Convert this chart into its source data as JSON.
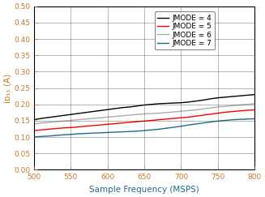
{
  "title": "",
  "xlabel": "Sample Frequency (MSPS)",
  "ylabel": "iᴅ₁₁ (A)",
  "xlim": [
    500,
    800
  ],
  "ylim": [
    0,
    0.5
  ],
  "xticks": [
    500,
    550,
    600,
    650,
    700,
    750,
    800
  ],
  "yticks": [
    0,
    0.05,
    0.1,
    0.15,
    0.2,
    0.25,
    0.3,
    0.35,
    0.4,
    0.45,
    0.5
  ],
  "x": [
    500,
    510,
    520,
    530,
    540,
    550,
    560,
    570,
    580,
    590,
    600,
    610,
    620,
    630,
    640,
    650,
    660,
    670,
    680,
    690,
    700,
    710,
    720,
    730,
    740,
    750,
    760,
    770,
    780,
    790,
    800
  ],
  "jmode4": [
    0.153,
    0.157,
    0.16,
    0.163,
    0.166,
    0.169,
    0.172,
    0.175,
    0.178,
    0.181,
    0.184,
    0.187,
    0.19,
    0.192,
    0.195,
    0.198,
    0.2,
    0.202,
    0.203,
    0.204,
    0.205,
    0.207,
    0.21,
    0.213,
    0.217,
    0.22,
    0.222,
    0.224,
    0.226,
    0.228,
    0.23
  ],
  "jmode5": [
    0.12,
    0.122,
    0.124,
    0.126,
    0.128,
    0.129,
    0.131,
    0.133,
    0.135,
    0.137,
    0.139,
    0.141,
    0.143,
    0.145,
    0.147,
    0.149,
    0.151,
    0.153,
    0.155,
    0.157,
    0.159,
    0.161,
    0.164,
    0.167,
    0.17,
    0.173,
    0.176,
    0.178,
    0.18,
    0.182,
    0.183
  ],
  "jmode6": [
    0.14,
    0.143,
    0.145,
    0.147,
    0.149,
    0.151,
    0.153,
    0.155,
    0.157,
    0.159,
    0.161,
    0.163,
    0.165,
    0.167,
    0.169,
    0.171,
    0.172,
    0.173,
    0.175,
    0.177,
    0.179,
    0.181,
    0.183,
    0.186,
    0.189,
    0.192,
    0.194,
    0.196,
    0.198,
    0.2,
    0.202
  ],
  "jmode7": [
    0.1,
    0.102,
    0.103,
    0.105,
    0.107,
    0.108,
    0.11,
    0.111,
    0.112,
    0.113,
    0.114,
    0.115,
    0.116,
    0.117,
    0.118,
    0.12,
    0.122,
    0.124,
    0.127,
    0.13,
    0.133,
    0.137,
    0.14,
    0.143,
    0.146,
    0.149,
    0.151,
    0.153,
    0.154,
    0.155,
    0.156
  ],
  "color_jmode4": "#000000",
  "color_jmode5": "#ff0000",
  "color_jmode6": "#aaaaaa",
  "color_jmode7": "#1f6b8e",
  "legend_labels": [
    "JMODE = 4",
    "JMODE = 5",
    "JMODE = 6",
    "JMODE = 7"
  ],
  "linewidth": 1.0,
  "grid_color": "#000000",
  "ylabel_color": "#c8792a",
  "xlabel_color": "#1f6b8e",
  "tick_color": "#c8792a",
  "legend_fontsize": 6.5,
  "tick_fontsize": 6.5,
  "label_fontsize": 7.5
}
